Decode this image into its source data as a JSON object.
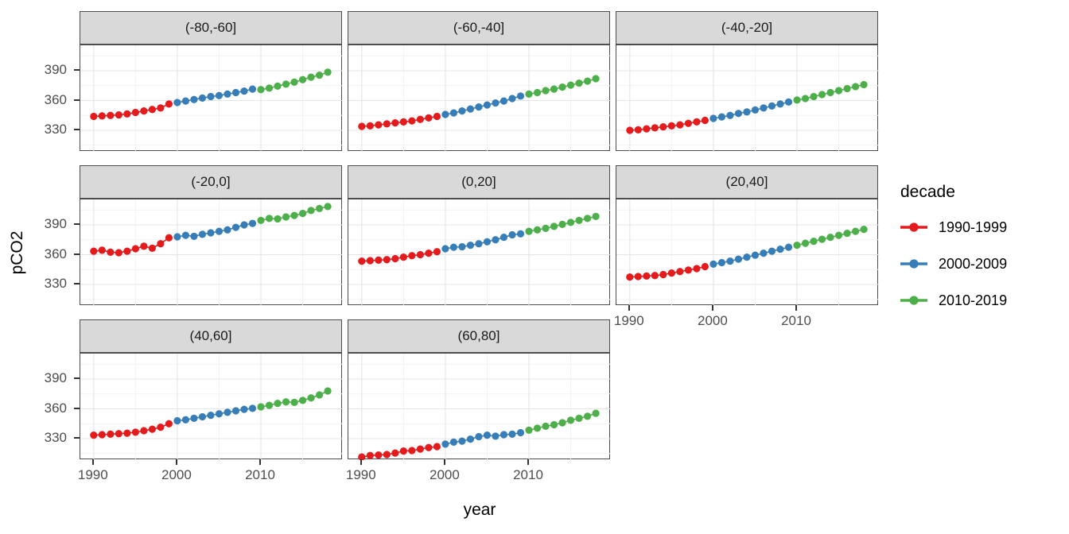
{
  "chart_data": {
    "type": "scatter",
    "title": "",
    "xlabel": "year",
    "ylabel": "pCO2",
    "grid": true,
    "legend": {
      "title": "decade",
      "position": "right"
    },
    "x_ticks": [
      1990,
      2000,
      2010
    ],
    "x_minor_ticks": [
      1995,
      2005,
      2015
    ],
    "y_ticks": [
      330,
      360,
      390
    ],
    "y_minor_ticks": [
      315,
      345,
      375,
      405
    ],
    "xlim": [
      1988.4,
      2019.8
    ],
    "ylim": [
      308.4,
      415.6
    ],
    "years": [
      1990,
      1991,
      1992,
      1993,
      1994,
      1995,
      1996,
      1997,
      1998,
      1999,
      2000,
      2001,
      2002,
      2003,
      2004,
      2005,
      2006,
      2007,
      2008,
      2009,
      2010,
      2011,
      2012,
      2013,
      2014,
      2015,
      2016,
      2017,
      2018
    ],
    "decades": [
      {
        "label": "1990-1999",
        "color": "#E41A1C",
        "start_year": 1990,
        "end_year": 1999
      },
      {
        "label": "2000-2009",
        "color": "#377EB8",
        "start_year": 2000,
        "end_year": 2009
      },
      {
        "label": "2010-2019",
        "color": "#4DAF4A",
        "start_year": 2010,
        "end_year": 2019
      }
    ],
    "facets": [
      {
        "label": "(-80,-60]",
        "values": [
          344,
          344.5,
          345,
          345.5,
          346.5,
          348,
          349.5,
          351,
          352.5,
          356.5,
          358,
          359.5,
          361,
          362.5,
          364,
          365,
          366.5,
          368,
          369.5,
          371.5,
          371,
          372.5,
          374.5,
          376.5,
          378.5,
          381,
          383.5,
          385.5,
          388.5
        ]
      },
      {
        "label": "(-60,-40]",
        "values": [
          334,
          334.5,
          335.5,
          336.5,
          337.5,
          338.5,
          339.5,
          341,
          342.5,
          344,
          346,
          347.5,
          349.5,
          351.5,
          353.5,
          355.5,
          357.5,
          359.5,
          362,
          364.5,
          366.5,
          368,
          370,
          371.5,
          373.5,
          375.5,
          377.5,
          379.5,
          382
        ]
      },
      {
        "label": "(-40,-20]",
        "values": [
          330,
          330.5,
          331.5,
          332.5,
          333.5,
          334.5,
          335.5,
          337,
          338.5,
          340,
          342,
          343.5,
          345,
          347,
          348.5,
          350.5,
          352.5,
          354.5,
          356.5,
          358.5,
          360.5,
          362,
          364,
          366,
          368,
          370,
          372,
          374,
          376
        ]
      },
      {
        "label": "(-20,0]",
        "values": [
          363.5,
          364.5,
          362.5,
          362,
          363.5,
          366,
          368.5,
          366.5,
          371,
          377,
          378,
          379.5,
          378.5,
          380.5,
          382,
          383.5,
          385,
          387.5,
          390,
          391.5,
          394.5,
          396.5,
          396,
          398,
          399.5,
          401.5,
          404.5,
          406.5,
          408.5
        ]
      },
      {
        "label": "(0,20]",
        "values": [
          353.5,
          354,
          354.5,
          355,
          356,
          357.5,
          359,
          360,
          361.5,
          363,
          366,
          367.5,
          368,
          369.5,
          371,
          373,
          375,
          377.5,
          380,
          381,
          383.5,
          385,
          386.5,
          388.5,
          390.5,
          392.5,
          394.5,
          396.5,
          398.5
        ]
      },
      {
        "label": "(20,40]",
        "values": [
          337.5,
          338,
          338.5,
          339,
          340,
          341.5,
          343,
          344.5,
          346,
          348,
          350.5,
          352,
          353.5,
          355.5,
          357.5,
          359.5,
          361.5,
          363.5,
          365.5,
          367.5,
          369.5,
          371.5,
          373.5,
          375.5,
          377.5,
          379.5,
          381.5,
          383.5,
          385.5
        ]
      },
      {
        "label": "(40,60]",
        "values": [
          333.5,
          334,
          334.5,
          335,
          335.5,
          336.5,
          338,
          339.5,
          341.5,
          345,
          348,
          349,
          350.5,
          352,
          353.5,
          355,
          356.5,
          358,
          359.5,
          360.5,
          362,
          363.5,
          365.5,
          367,
          366.5,
          368.5,
          371,
          374,
          378
        ]
      },
      {
        "label": "(60,80]",
        "values": [
          311.5,
          313,
          313.5,
          314,
          315.5,
          317.5,
          318,
          319.5,
          321,
          322,
          324.5,
          326.5,
          327.5,
          329.5,
          332,
          333.5,
          332.5,
          334,
          334.5,
          336,
          338.5,
          340.5,
          342.5,
          344,
          346,
          348.5,
          350.5,
          352.5,
          355.5
        ]
      }
    ],
    "colors": {
      "grid_major": "#E4E4E4",
      "grid_minor": "#F2F2F2",
      "strip_fill": "#D9D9D9",
      "panel_border": "#4D4D4D",
      "tick_mark": "#333333",
      "tick_text": "#4D4D4D",
      "axis_title_text": "#000000"
    }
  }
}
